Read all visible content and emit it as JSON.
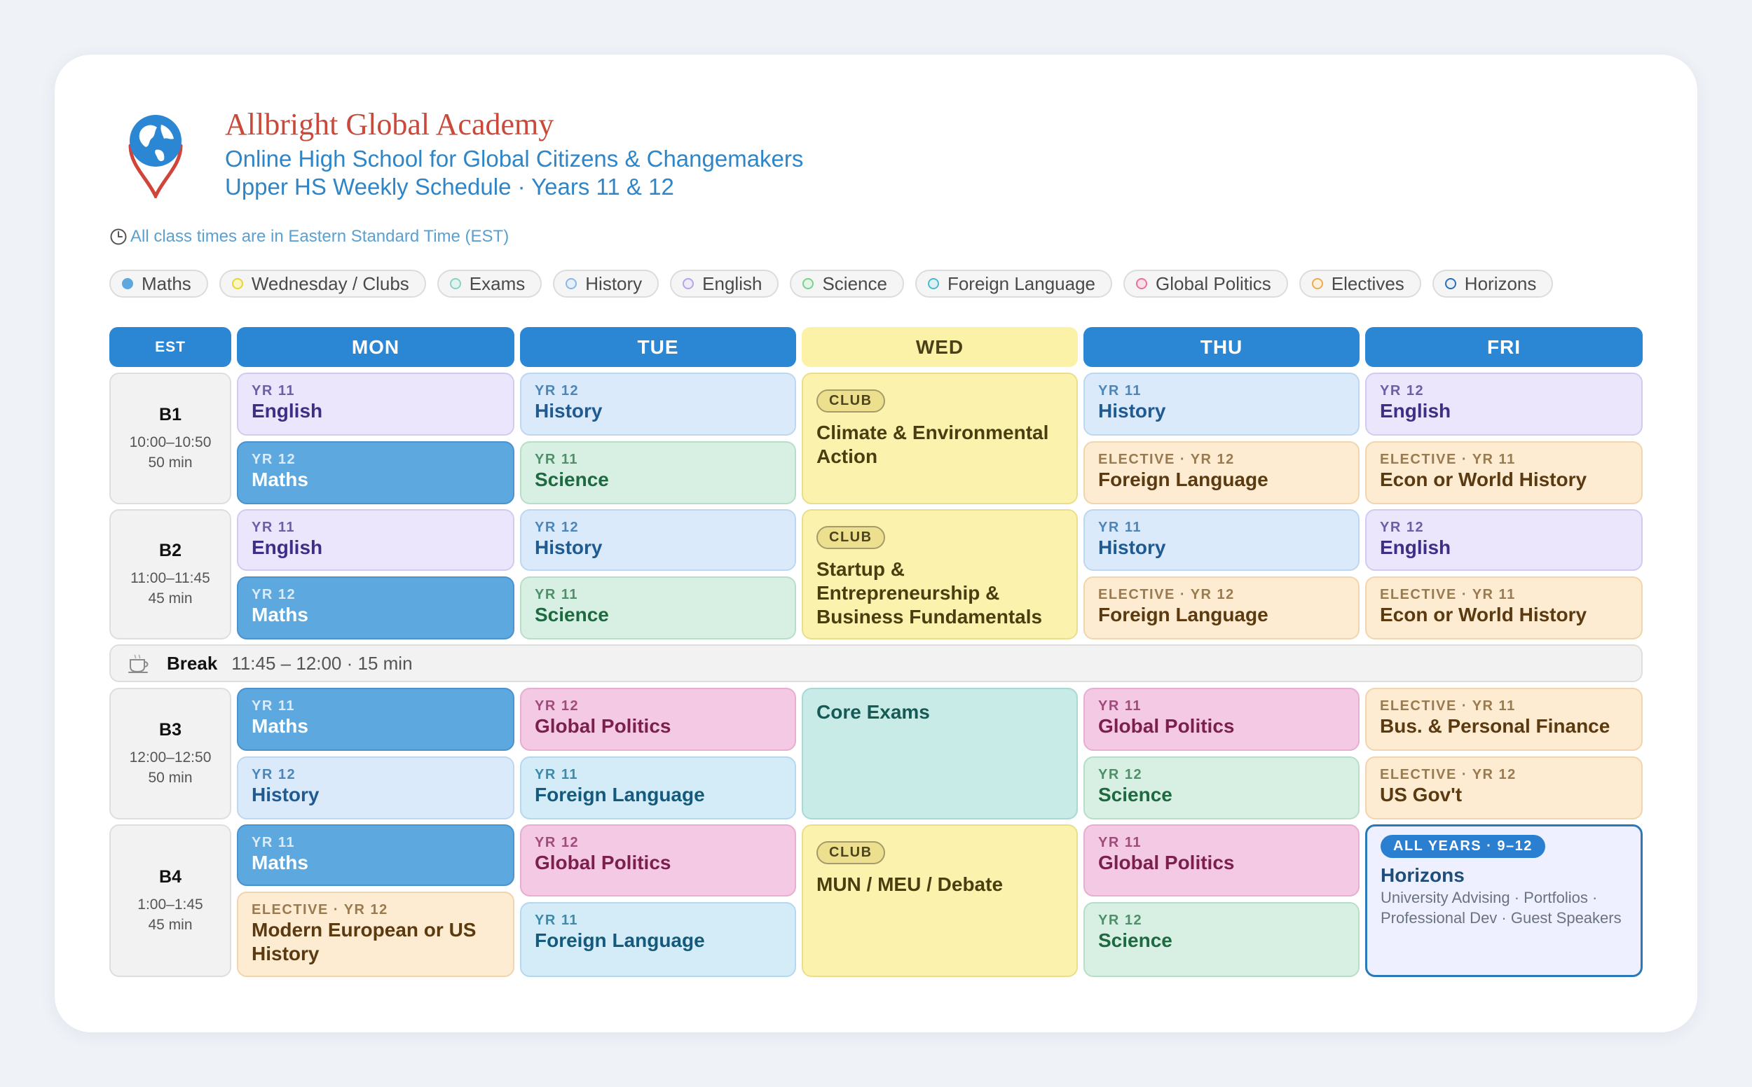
{
  "header": {
    "school_name": "Allbright Global Academy",
    "tagline": "Online High School for Global Citizens & Changemakers",
    "schedule_title": "Upper HS Weekly Schedule · Years 11 & 12",
    "timezone_note": "All class times are in Eastern Standard Time (EST)"
  },
  "legend": [
    {
      "label": "Maths",
      "color": "#5ea8e0"
    },
    {
      "label": "Wednesday / Clubs",
      "color": "#e8d433"
    },
    {
      "label": "Exams",
      "color": "#8fd0c4"
    },
    {
      "label": "History",
      "color": "#8ab6e6"
    },
    {
      "label": "English",
      "color": "#b4a6e6"
    },
    {
      "label": "Science",
      "color": "#7ccf8e"
    },
    {
      "label": "Foreign Language",
      "color": "#4cb9c9"
    },
    {
      "label": "Global Politics",
      "color": "#e6719c"
    },
    {
      "label": "Electives",
      "color": "#ecab52"
    },
    {
      "label": "Horizons",
      "color": "#2a6fb0"
    }
  ],
  "days": {
    "est": "EST",
    "mon": "MON",
    "tue": "TUE",
    "wed": "WED",
    "thu": "THU",
    "fri": "FRI"
  },
  "slots": {
    "b1": {
      "label": "B1",
      "time": "10:00–10:50",
      "duration": "50 min"
    },
    "b2": {
      "label": "B2",
      "time": "11:00–11:45",
      "duration": "45 min"
    },
    "b3": {
      "label": "B3",
      "time": "12:00–12:50",
      "duration": "50 min"
    },
    "b4": {
      "label": "B4",
      "time": "1:00–1:45",
      "duration": "45 min"
    }
  },
  "break": {
    "label": "Break",
    "details": "11:45 – 12:00 · 15 min"
  },
  "classes": {
    "b1_mon_a": {
      "tag": "YR 11",
      "name": "English"
    },
    "b1_mon_b": {
      "tag": "YR 12",
      "name": "Maths"
    },
    "b1_tue_a": {
      "tag": "YR 12",
      "name": "History"
    },
    "b1_tue_b": {
      "tag": "YR 11",
      "name": "Science"
    },
    "b1_wed": {
      "badge": "CLUB",
      "name": "Climate & Environmental Action"
    },
    "b1_thu_a": {
      "tag": "YR 11",
      "name": "History"
    },
    "b1_thu_b": {
      "tag": "ELECTIVE · YR 12",
      "name": "Foreign Language"
    },
    "b1_fri_a": {
      "tag": "YR 12",
      "name": "English"
    },
    "b1_fri_b": {
      "tag": "ELECTIVE · YR 11",
      "name": "Econ or World History"
    },
    "b2_mon_a": {
      "tag": "YR 11",
      "name": "English"
    },
    "b2_mon_b": {
      "tag": "YR 12",
      "name": "Maths"
    },
    "b2_tue_a": {
      "tag": "YR 12",
      "name": "History"
    },
    "b2_tue_b": {
      "tag": "YR 11",
      "name": "Science"
    },
    "b2_wed": {
      "badge": "CLUB",
      "name": "Startup & Entrepreneurship & Business Fundamentals"
    },
    "b2_thu_a": {
      "tag": "YR 11",
      "name": "History"
    },
    "b2_thu_b": {
      "tag": "ELECTIVE · YR 12",
      "name": "Foreign Language"
    },
    "b2_fri_a": {
      "tag": "YR 12",
      "name": "English"
    },
    "b2_fri_b": {
      "tag": "ELECTIVE · YR 11",
      "name": "Econ or World History"
    },
    "b3_mon_a": {
      "tag": "YR 11",
      "name": "Maths"
    },
    "b3_mon_b": {
      "tag": "YR 12",
      "name": "History"
    },
    "b3_tue_a": {
      "tag": "YR 12",
      "name": "Global Politics"
    },
    "b3_tue_b": {
      "tag": "YR 11",
      "name": "Foreign Language"
    },
    "b3_wed": {
      "name": "Core Exams"
    },
    "b3_thu_a": {
      "tag": "YR 11",
      "name": "Global Politics"
    },
    "b3_thu_b": {
      "tag": "YR 12",
      "name": "Science"
    },
    "b3_fri_a": {
      "tag": "ELECTIVE · YR 11",
      "name": "Bus. & Personal Finance"
    },
    "b3_fri_b": {
      "tag": "ELECTIVE · YR 12",
      "name": "US Gov't"
    },
    "b4_mon_a": {
      "tag": "YR 11",
      "name": "Maths"
    },
    "b4_mon_b": {
      "tag": "ELECTIVE · YR 12",
      "name": "Modern European or US History"
    },
    "b4_tue_a": {
      "tag": "YR 12",
      "name": "Global Politics"
    },
    "b4_tue_b": {
      "tag": "YR 11",
      "name": "Foreign Language"
    },
    "b4_wed": {
      "badge": "CLUB",
      "name": "MUN / MEU / Debate"
    },
    "b4_thu_a": {
      "tag": "YR 11",
      "name": "Global Politics"
    },
    "b4_thu_b": {
      "tag": "YR 12",
      "name": "Science"
    },
    "b4_fri": {
      "badge": "ALL YEARS · 9–12",
      "name": "Horizons",
      "description": "University Advising · Portfolios · Professional Dev · Guest Speakers"
    }
  }
}
